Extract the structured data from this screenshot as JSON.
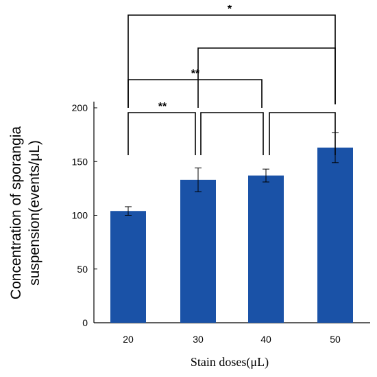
{
  "chart_data": {
    "type": "bar",
    "title": "",
    "xlabel": "Stain doses(μL)",
    "ylabel_lines": [
      "Concentration of sporangia",
      "suspension(events/μL)"
    ],
    "categories": [
      "20",
      "30",
      "40",
      "50"
    ],
    "values": [
      104,
      133,
      137,
      163
    ],
    "errors": [
      4,
      11,
      6,
      14
    ],
    "ylim": [
      0,
      200
    ],
    "yticks": [
      0,
      50,
      100,
      150,
      200
    ],
    "grid": false,
    "bar_color": "#1a52a7",
    "significance": [
      {
        "from": "20",
        "to": "50",
        "label": "*"
      },
      {
        "from": "30",
        "to": "50",
        "label": ""
      },
      {
        "from": "20",
        "to": "40",
        "label": "**"
      },
      {
        "from": "20",
        "to": "30",
        "label": "**"
      },
      {
        "from": "30",
        "to": "40",
        "label": ""
      },
      {
        "from": "40",
        "to": "50",
        "label": ""
      }
    ]
  }
}
